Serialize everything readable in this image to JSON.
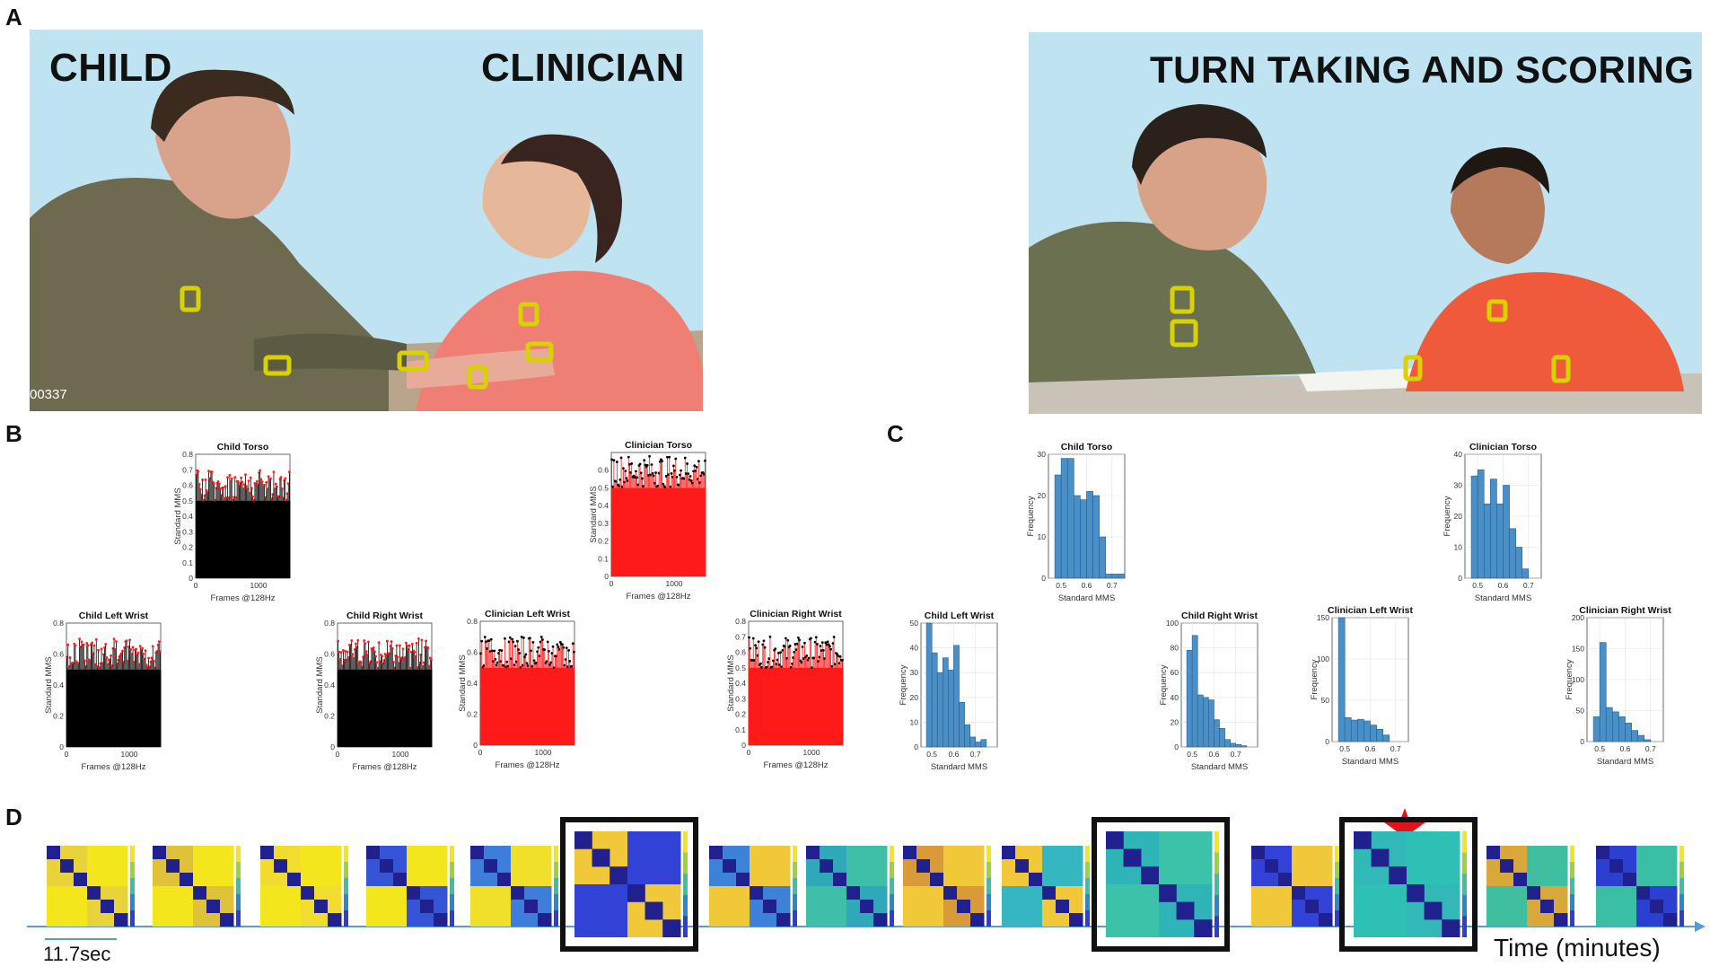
{
  "panel_labels": {
    "a": "A",
    "b": "B",
    "c": "C",
    "d": "D"
  },
  "photo_left": {
    "child_label": "CHILD",
    "clinician_label": "CLINICIAN",
    "frame_code": "00337"
  },
  "photo_right": {
    "caption": "TURN TAKING AND SCORING"
  },
  "timeline": {
    "scale_label": "11.7sec",
    "axis_label": "Time (minutes)",
    "highlighted_frames": [
      6,
      11,
      13
    ],
    "starred_frame": 13,
    "frame_count": 15
  },
  "colors": {
    "sky": "#bfe3f1",
    "sensor": "#d8d200",
    "red_bars": "#ff1a1a",
    "black_bars": "#000000",
    "hist_blue": "#4a90c8",
    "axis_line": "#5b9bd5",
    "star": "#e3131b"
  },
  "chart_data": [
    {
      "id": "b-child-torso",
      "type": "bar",
      "title": "Child Torso",
      "xlabel": "Frames @128Hz",
      "ylabel": "Standard MMS",
      "xlim": [
        0,
        1500
      ],
      "ylim": [
        0,
        0.8
      ],
      "xticks": [
        "0",
        "1000"
      ],
      "yticks": [
        "0",
        "0.1",
        "0.2",
        "0.3",
        "0.4",
        "0.5",
        "0.6",
        "0.7",
        "0.8"
      ],
      "bar_color": "black",
      "marker_color": "red",
      "baseline": 0.5,
      "peak_range": [
        0.5,
        0.7
      ]
    },
    {
      "id": "b-clinician-torso",
      "type": "bar",
      "title": "Clinician Torso",
      "xlabel": "Frames @128Hz",
      "ylabel": "Standard MMS",
      "xlim": [
        0,
        1500
      ],
      "ylim": [
        0,
        0.7
      ],
      "xticks": [
        "0",
        "1000"
      ],
      "yticks": [
        "0",
        "0.1",
        "0.2",
        "0.3",
        "0.4",
        "0.5",
        "0.6"
      ],
      "bar_color": "red",
      "marker_color": "black",
      "baseline": 0.5,
      "peak_range": [
        0.5,
        0.68
      ]
    },
    {
      "id": "b-child-left-wrist",
      "type": "bar",
      "title": "Child Left Wrist",
      "xlabel": "Frames @128Hz",
      "ylabel": "Standard MMS",
      "xlim": [
        0,
        1500
      ],
      "ylim": [
        0,
        0.8
      ],
      "xticks": [
        "0",
        "1000"
      ],
      "yticks": [
        "0",
        "0.2",
        "0.4",
        "0.6",
        "0.8"
      ],
      "bar_color": "black",
      "marker_color": "red",
      "baseline": 0.5,
      "peak_range": [
        0.5,
        0.7
      ]
    },
    {
      "id": "b-child-right-wrist",
      "type": "bar",
      "title": "Child Right Wrist",
      "xlabel": "Frames @128Hz",
      "ylabel": "Standard MMS",
      "xlim": [
        0,
        1500
      ],
      "ylim": [
        0,
        0.8
      ],
      "xticks": [
        "0",
        "1000"
      ],
      "yticks": [
        "0",
        "0.2",
        "0.4",
        "0.6",
        "0.8"
      ],
      "bar_color": "black",
      "marker_color": "red",
      "baseline": 0.5,
      "peak_range": [
        0.5,
        0.7
      ]
    },
    {
      "id": "b-clinician-left-wrist",
      "type": "bar",
      "title": "Clinician Left Wrist",
      "xlabel": "Frames @128Hz",
      "ylabel": "Standard MMS",
      "xlim": [
        0,
        1500
      ],
      "ylim": [
        0,
        0.8
      ],
      "xticks": [
        "0",
        "1000"
      ],
      "yticks": [
        "0",
        "0.2",
        "0.4",
        "0.6",
        "0.8"
      ],
      "bar_color": "red",
      "marker_color": "black",
      "baseline": 0.5,
      "peak_range": [
        0.5,
        0.7
      ]
    },
    {
      "id": "b-clinician-right-wrist",
      "type": "bar",
      "title": "Clinician Right Wrist",
      "xlabel": "Frames @128Hz",
      "ylabel": "Standard MMS",
      "xlim": [
        0,
        1500
      ],
      "ylim": [
        0,
        0.8
      ],
      "xticks": [
        "0",
        "1000"
      ],
      "yticks": [
        "0",
        "0.1",
        "0.2",
        "0.3",
        "0.4",
        "0.5",
        "0.6",
        "0.7",
        "0.8"
      ],
      "bar_color": "red",
      "marker_color": "black",
      "baseline": 0.5,
      "peak_range": [
        0.5,
        0.7
      ]
    },
    {
      "id": "c-child-torso",
      "type": "histogram",
      "title": "Child Torso",
      "xlabel": "Standard MMS",
      "ylabel": "Frequency",
      "xlim": [
        0.45,
        0.75
      ],
      "ylim": [
        0,
        30
      ],
      "xticks": [
        "0.5",
        "0.6",
        "0.7"
      ],
      "yticks": [
        "0",
        "10",
        "20",
        "30"
      ],
      "bin_edges": [
        0.475,
        0.5,
        0.525,
        0.55,
        0.575,
        0.6,
        0.625,
        0.65,
        0.675,
        0.7,
        0.725,
        0.75
      ],
      "values": [
        25,
        29,
        29,
        20,
        19,
        21,
        20,
        10,
        1,
        1,
        1
      ]
    },
    {
      "id": "c-clinician-torso",
      "type": "histogram",
      "title": "Clinician Torso",
      "xlabel": "Standard MMS",
      "ylabel": "Frequency",
      "xlim": [
        0.45,
        0.75
      ],
      "ylim": [
        0,
        40
      ],
      "xticks": [
        "0.5",
        "0.6",
        "0.7"
      ],
      "yticks": [
        "0",
        "10",
        "20",
        "30",
        "40"
      ],
      "bin_edges": [
        0.475,
        0.5,
        0.525,
        0.55,
        0.575,
        0.6,
        0.625,
        0.65,
        0.675,
        0.7,
        0.725
      ],
      "values": [
        33,
        35,
        24,
        32,
        24,
        30,
        16,
        10,
        3,
        0
      ]
    },
    {
      "id": "c-child-left-wrist",
      "type": "histogram",
      "title": "Child Left Wrist",
      "xlabel": "Standard MMS",
      "ylabel": "Frequency",
      "xlim": [
        0.45,
        0.8
      ],
      "ylim": [
        0,
        50
      ],
      "xticks": [
        "0.5",
        "0.6",
        "0.7"
      ],
      "yticks": [
        "0",
        "10",
        "20",
        "30",
        "40",
        "50"
      ],
      "bin_edges": [
        0.475,
        0.5,
        0.525,
        0.55,
        0.575,
        0.6,
        0.625,
        0.65,
        0.675,
        0.7,
        0.725,
        0.75,
        0.775
      ],
      "values": [
        50,
        38,
        30,
        36,
        31,
        41,
        18,
        9,
        4,
        2,
        3,
        0
      ]
    },
    {
      "id": "c-child-right-wrist",
      "type": "histogram",
      "title": "Child Right Wrist",
      "xlabel": "Standard MMS",
      "ylabel": "Frequency",
      "xlim": [
        0.45,
        0.8
      ],
      "ylim": [
        0,
        100
      ],
      "xticks": [
        "0.5",
        "0.6",
        "0.7"
      ],
      "yticks": [
        "0",
        "20",
        "40",
        "60",
        "80",
        "100"
      ],
      "bin_edges": [
        0.475,
        0.5,
        0.525,
        0.55,
        0.575,
        0.6,
        0.625,
        0.65,
        0.675,
        0.7,
        0.725,
        0.75,
        0.775
      ],
      "values": [
        78,
        90,
        42,
        40,
        38,
        22,
        15,
        6,
        3,
        2,
        1,
        0
      ]
    },
    {
      "id": "c-clinician-left-wrist",
      "type": "histogram",
      "title": "Clinician Left Wrist",
      "xlabel": "Standard MMS",
      "ylabel": "Frequency",
      "xlim": [
        0.45,
        0.75
      ],
      "ylim": [
        0,
        150
      ],
      "xticks": [
        "0.5",
        "0.6",
        "0.7"
      ],
      "yticks": [
        "0",
        "50",
        "100",
        "150"
      ],
      "bin_edges": [
        0.475,
        0.5,
        0.525,
        0.55,
        0.575,
        0.6,
        0.625,
        0.65,
        0.675,
        0.7,
        0.725
      ],
      "values": [
        150,
        29,
        26,
        27,
        25,
        20,
        15,
        8,
        0,
        0
      ]
    },
    {
      "id": "c-clinician-right-wrist",
      "type": "histogram",
      "title": "Clinician Right Wrist",
      "xlabel": "Standard MMS",
      "ylabel": "Frequency",
      "xlim": [
        0.45,
        0.75
      ],
      "ylim": [
        0,
        200
      ],
      "xticks": [
        "0.5",
        "0.6",
        "0.7"
      ],
      "yticks": [
        "0",
        "50",
        "100",
        "150",
        "200"
      ],
      "bin_edges": [
        0.475,
        0.5,
        0.525,
        0.55,
        0.575,
        0.6,
        0.625,
        0.65,
        0.675,
        0.7,
        0.725
      ],
      "values": [
        40,
        160,
        55,
        48,
        40,
        30,
        18,
        10,
        3,
        0
      ]
    }
  ]
}
